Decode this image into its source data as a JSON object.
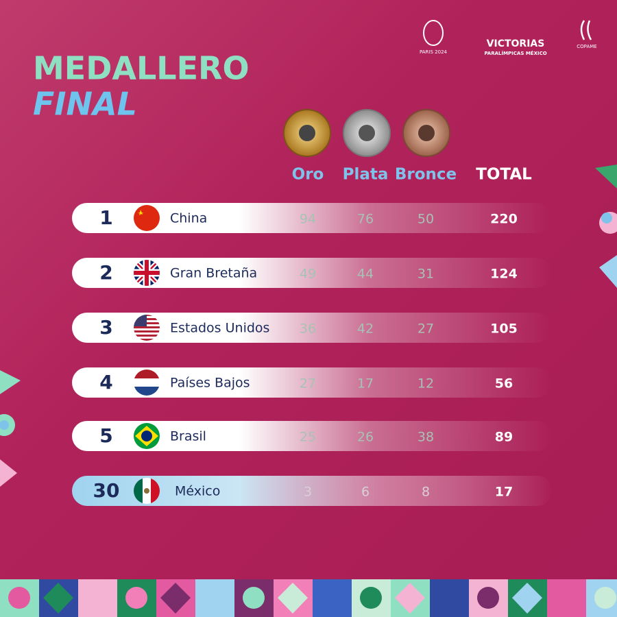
{
  "header": {
    "title_line1": "MEDALLERO",
    "title_line2": "FINAL",
    "logos": [
      "PARIS 2024",
      "VICTORIAS",
      "PARALÍMPICAS MÉXICO",
      "COPAME"
    ]
  },
  "table": {
    "columns": [
      "Oro",
      "Plata",
      "Bronce",
      "TOTAL"
    ],
    "rows": [
      {
        "rank": "1",
        "country": "China",
        "gold": 94,
        "silver": 76,
        "bronze": 50,
        "total": 220
      },
      {
        "rank": "2",
        "country": "Gran Bretaña",
        "gold": 49,
        "silver": 44,
        "bronze": 31,
        "total": 124
      },
      {
        "rank": "3",
        "country": "Estados Unidos",
        "gold": 36,
        "silver": 42,
        "bronze": 27,
        "total": 105
      },
      {
        "rank": "4",
        "country": "Países Bajos",
        "gold": 27,
        "silver": 17,
        "bronze": 12,
        "total": 56
      },
      {
        "rank": "5",
        "country": "Brasil",
        "gold": 25,
        "silver": 26,
        "bronze": 38,
        "total": 89
      },
      {
        "rank": "30",
        "country": "México",
        "gold": 3,
        "silver": 6,
        "bronze": 8,
        "total": 17
      }
    ]
  }
}
